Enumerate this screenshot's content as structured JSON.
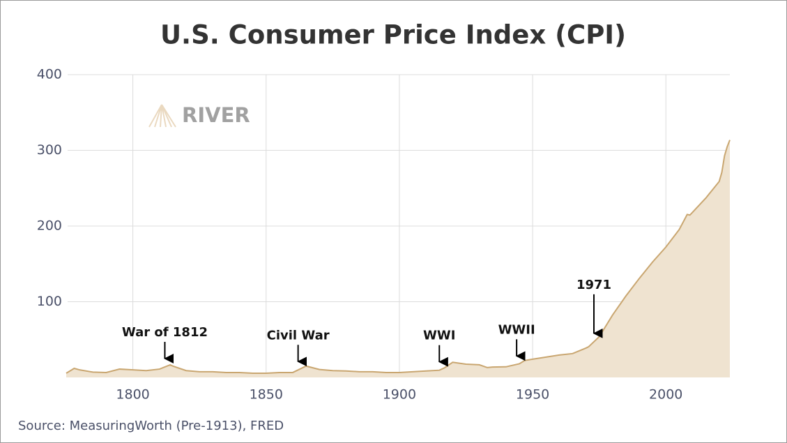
{
  "chart_data": {
    "type": "area",
    "title": "U.S. Consumer Price Index (CPI)",
    "watermark": "RIVER",
    "source": "Source: MeasuringWorth (Pre-1913), FRED",
    "x": [
      1775,
      1778,
      1780,
      1785,
      1790,
      1795,
      1800,
      1805,
      1810,
      1814,
      1815,
      1820,
      1825,
      1830,
      1835,
      1840,
      1845,
      1850,
      1855,
      1860,
      1865,
      1870,
      1875,
      1880,
      1885,
      1890,
      1895,
      1900,
      1905,
      1910,
      1915,
      1917,
      1920,
      1925,
      1930,
      1933,
      1935,
      1940,
      1945,
      1947,
      1950,
      1955,
      1960,
      1965,
      1970,
      1971,
      1975,
      1980,
      1985,
      1990,
      1995,
      2000,
      2005,
      2008,
      2009,
      2010,
      2015,
      2020,
      2021,
      2022,
      2023,
      2024
    ],
    "series": [
      {
        "name": "CPI",
        "color": "#c9a670",
        "fill": "#efe3d0",
        "values": [
          5.5,
          12,
          10,
          7,
          6.5,
          11,
          10,
          9,
          11,
          16.6,
          15,
          9,
          7.5,
          7.5,
          6.5,
          6.5,
          5.5,
          5.5,
          6.5,
          6.5,
          15,
          10.5,
          9,
          8.5,
          7.5,
          7.5,
          6.5,
          6.5,
          7.5,
          8.5,
          9.5,
          12.8,
          20,
          17.5,
          16.7,
          13,
          13.7,
          14,
          18,
          22.3,
          24.1,
          26.8,
          29.6,
          31.5,
          38.8,
          40.5,
          53.8,
          82.4,
          107.6,
          130.7,
          152.4,
          172.2,
          195.3,
          215.3,
          214.5,
          218.1,
          237,
          258.8,
          271,
          292.7,
          304.7,
          313.7
        ]
      }
    ],
    "annotations": [
      {
        "text": "War of 1812",
        "x": 1812
      },
      {
        "text": "Civil War",
        "x": 1862
      },
      {
        "text": "WWI",
        "x": 1915
      },
      {
        "text": "WWII",
        "x": 1944
      },
      {
        "text": "1971",
        "x": 1973
      }
    ],
    "xlim": [
      1775,
      2024
    ],
    "xticks": [
      1800,
      1850,
      1900,
      1950,
      2000
    ],
    "ylim": [
      0,
      400
    ],
    "yticks": [
      100,
      200,
      300,
      400
    ],
    "grid": true
  }
}
